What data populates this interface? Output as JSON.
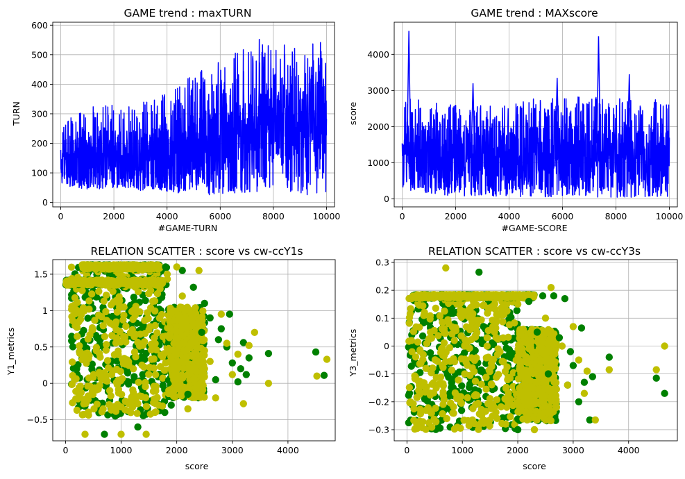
{
  "chart_data": [
    {
      "id": "p1",
      "type": "line",
      "title": "GAME trend : maxTURN",
      "xlabel": "#GAME-TURN",
      "ylabel": "TURN",
      "xlim": [
        -300,
        10300
      ],
      "ylim": [
        -15,
        610
      ],
      "xticks": [
        0,
        2000,
        4000,
        6000,
        8000,
        10000
      ],
      "yticks": [
        0,
        100,
        200,
        300,
        400,
        500,
        600
      ],
      "grid": true,
      "series": [
        {
          "color": "#0000ff",
          "x": [
            0,
            500,
            1000,
            1500,
            2000,
            2500,
            3000,
            3500,
            4000,
            4500,
            5000,
            5500,
            6000,
            6500,
            7000,
            7400,
            7500,
            8000,
            8500,
            9000,
            9500,
            10000
          ],
          "low": [
            60,
            50,
            40,
            45,
            50,
            45,
            40,
            45,
            35,
            30,
            30,
            25,
            25,
            30,
            30,
            30,
            60,
            30,
            30,
            25,
            20,
            25
          ],
          "high": [
            270,
            300,
            320,
            330,
            330,
            340,
            340,
            350,
            380,
            420,
            440,
            460,
            480,
            520,
            540,
            585,
            560,
            520,
            540,
            550,
            560,
            540
          ],
          "core_low": [
            75,
            70,
            65,
            65,
            65,
            60,
            60,
            60,
            55,
            55,
            55,
            55,
            55,
            55,
            60,
            80,
            160,
            150,
            145,
            140,
            140,
            140
          ],
          "core_high": [
            200,
            220,
            230,
            240,
            245,
            250,
            255,
            260,
            270,
            290,
            300,
            320,
            330,
            340,
            340,
            360,
            380,
            400,
            400,
            400,
            410,
            420
          ]
        }
      ]
    },
    {
      "id": "p2",
      "type": "line",
      "title": "GAME trend : MAXscore",
      "xlabel": "#GAME-SCORE",
      "ylabel": "score",
      "xlim": [
        -300,
        10300
      ],
      "ylim": [
        -220,
        4890
      ],
      "xticks": [
        0,
        2000,
        4000,
        6000,
        8000,
        10000
      ],
      "yticks": [
        0,
        1000,
        2000,
        3000,
        4000
      ],
      "grid": true,
      "peaks": [
        {
          "x": 250,
          "y": 4650
        },
        {
          "x": 7350,
          "y": 4500
        },
        {
          "x": 8500,
          "y": 3450
        },
        {
          "x": 5800,
          "y": 3350
        },
        {
          "x": 2650,
          "y": 3200
        }
      ],
      "series": [
        {
          "color": "#0000ff",
          "x": [
            0,
            1000,
            2000,
            3000,
            4000,
            5000,
            6000,
            7000,
            8000,
            9000,
            10000
          ],
          "low": [
            300,
            100,
            80,
            60,
            60,
            50,
            50,
            50,
            40,
            40,
            50
          ],
          "high": [
            3000,
            2700,
            2600,
            2700,
            2650,
            2800,
            2800,
            2900,
            2800,
            2800,
            2700
          ],
          "core_low": [
            400,
            350,
            300,
            300,
            300,
            300,
            300,
            300,
            300,
            300,
            300
          ],
          "core_high": [
            2200,
            2100,
            2000,
            2000,
            2000,
            2000,
            2100,
            2100,
            2000,
            2000,
            2000
          ]
        }
      ]
    },
    {
      "id": "p3",
      "type": "scatter",
      "title": "RELATION SCATTER : score vs cw-ccY1s",
      "xlabel": "score",
      "ylabel": "Y1_metrics",
      "xlim": [
        -230,
        4850
      ],
      "ylim": [
        -0.79,
        1.7
      ],
      "xticks": [
        0,
        1000,
        2000,
        3000,
        4000
      ],
      "yticks": [
        -0.5,
        0.0,
        0.5,
        1.0,
        1.5
      ],
      "grid": true,
      "series": [
        {
          "color": "#008000",
          "points": [
            [
              4500,
              0.43
            ],
            [
              4650,
              0.11
            ],
            [
              3650,
              0.41
            ],
            [
              3250,
              0.12
            ],
            [
              3100,
              0.02
            ],
            [
              2700,
              0.05
            ],
            [
              3200,
              0.56
            ],
            [
              2900,
              0.5
            ],
            [
              2600,
              0.9
            ],
            [
              2300,
              1.32
            ],
            [
              2100,
              1.55
            ],
            [
              1800,
              1.6
            ],
            [
              700,
              -0.7
            ],
            [
              1300,
              -0.6
            ],
            [
              2200,
              -0.15
            ],
            [
              2800,
              0.75
            ],
            [
              3000,
              0.28
            ],
            [
              3300,
              0.35
            ],
            [
              1900,
              -0.3
            ],
            [
              2500,
              1.1
            ],
            [
              2950,
              0.95
            ],
            [
              3150,
              0.2
            ],
            [
              2750,
              0.6
            ],
            [
              2450,
              0.7
            ]
          ]
        },
        {
          "color": "#bfbf00",
          "points": [
            [
              4700,
              0.33
            ],
            [
              4520,
              0.1
            ],
            [
              3650,
              0.0
            ],
            [
              3400,
              0.7
            ],
            [
              3200,
              -0.28
            ],
            [
              2800,
              0.95
            ],
            [
              2400,
              1.55
            ],
            [
              2000,
              1.6
            ],
            [
              350,
              -0.7
            ],
            [
              1000,
              -0.7
            ],
            [
              1450,
              -0.7
            ],
            [
              2900,
              0.55
            ],
            [
              3100,
              0.4
            ],
            [
              2600,
              0.3
            ],
            [
              2300,
              0.82
            ],
            [
              2100,
              1.2
            ],
            [
              1700,
              1.3
            ],
            [
              3300,
              0.52
            ],
            [
              2700,
              -0.2
            ],
            [
              2200,
              -0.35
            ],
            [
              3000,
              0.12
            ],
            [
              2500,
              0.45
            ]
          ]
        }
      ],
      "density": [
        {
          "x0": 100,
          "x1": 1850,
          "y0": -0.45,
          "y1": 1.6,
          "color": "#bfbf00"
        },
        {
          "x0": 1850,
          "x1": 2500,
          "y0": -0.2,
          "y1": 1.05,
          "color": "#bfbf00"
        },
        {
          "x0": 0,
          "x1": 1750,
          "y0": 1.35,
          "y1": 1.42,
          "color": "#bfbf00"
        },
        {
          "x0": 300,
          "x1": 1700,
          "y0": 1.57,
          "y1": 1.63,
          "color": "#bfbf00"
        }
      ]
    },
    {
      "id": "p4",
      "type": "scatter",
      "title": "RELATION SCATTER : score vs cw-ccY3s",
      "xlabel": "score",
      "ylabel": "Y3_metrics",
      "xlim": [
        -230,
        4880
      ],
      "ylim": [
        -0.34,
        0.31
      ],
      "xticks": [
        0,
        1000,
        2000,
        3000,
        4000
      ],
      "yticks": [
        -0.3,
        -0.2,
        -0.1,
        0.0,
        0.1,
        0.2,
        0.3
      ],
      "grid": true,
      "series": [
        {
          "color": "#008000",
          "points": [
            [
              4650,
              -0.17
            ],
            [
              4500,
              -0.115
            ],
            [
              3650,
              -0.04
            ],
            [
              3300,
              -0.265
            ],
            [
              3150,
              0.065
            ],
            [
              3000,
              -0.07
            ],
            [
              2850,
              0.17
            ],
            [
              2650,
              0.18
            ],
            [
              2450,
              0.18
            ],
            [
              1300,
              0.265
            ],
            [
              2000,
              -0.3
            ],
            [
              2200,
              0.16
            ],
            [
              2900,
              -0.14
            ],
            [
              3100,
              -0.2
            ],
            [
              3350,
              -0.11
            ],
            [
              2750,
              0.03
            ],
            [
              2550,
              -0.1
            ],
            [
              2350,
              0.05
            ],
            [
              3200,
              -0.13
            ],
            [
              2950,
              -0.02
            ]
          ]
        },
        {
          "color": "#bfbf00",
          "points": [
            [
              4650,
              0.0
            ],
            [
              4500,
              -0.085
            ],
            [
              3650,
              -0.085
            ],
            [
              3400,
              -0.265
            ],
            [
              3200,
              -0.17
            ],
            [
              3000,
              0.07
            ],
            [
              2800,
              0.0
            ],
            [
              2600,
              0.21
            ],
            [
              700,
              0.28
            ],
            [
              2000,
              0.15
            ],
            [
              2300,
              -0.3
            ],
            [
              2100,
              0.06
            ],
            [
              2900,
              -0.14
            ],
            [
              3100,
              -0.05
            ],
            [
              2700,
              -0.22
            ],
            [
              2500,
              0.1
            ],
            [
              3250,
              -0.09
            ],
            [
              2400,
              -0.05
            ]
          ]
        }
      ],
      "density": [
        {
          "x0": 30,
          "x1": 2000,
          "y0": -0.3,
          "y1": 0.18,
          "color": "#bfbf00"
        },
        {
          "x0": 2000,
          "x1": 2700,
          "y0": -0.27,
          "y1": 0.06,
          "color": "#bfbf00"
        },
        {
          "x0": 100,
          "x1": 2300,
          "y0": 0.172,
          "y1": 0.185,
          "color": "#bfbf00"
        }
      ]
    }
  ]
}
